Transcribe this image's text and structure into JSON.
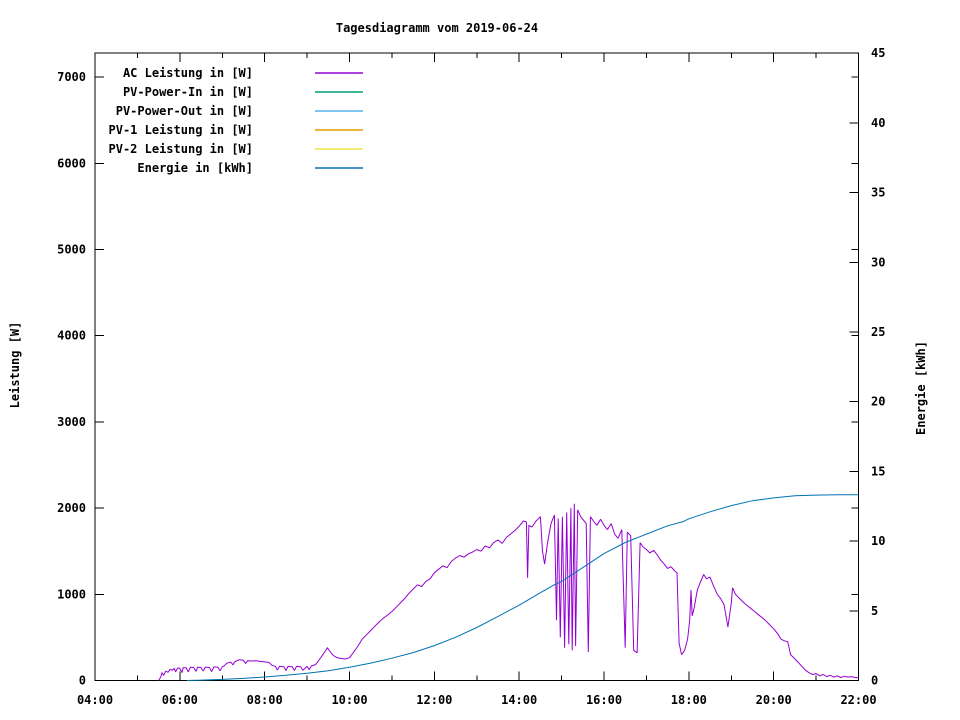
{
  "page": {
    "background": "#ffffff"
  },
  "chart_data": {
    "type": "line",
    "title": "Tagesdiagramm vom 2019-06-24",
    "xlabel": "",
    "ylabel": "Leistung [W]",
    "y2label": "Energie [kWh]",
    "grid": false,
    "legend_position": "top-left-inside",
    "x_range_hours": [
      4,
      22
    ],
    "x_major_ticks": [
      {
        "hour": 4,
        "label": "04:00"
      },
      {
        "hour": 6,
        "label": "06:00"
      },
      {
        "hour": 8,
        "label": "08:00"
      },
      {
        "hour": 10,
        "label": "10:00"
      },
      {
        "hour": 12,
        "label": "12:00"
      },
      {
        "hour": 14,
        "label": "14:00"
      },
      {
        "hour": 16,
        "label": "16:00"
      },
      {
        "hour": 18,
        "label": "18:00"
      },
      {
        "hour": 20,
        "label": "20:00"
      },
      {
        "hour": 22,
        "label": "22:00"
      }
    ],
    "x_minor_tick_hours": [
      5,
      7,
      9,
      11,
      13,
      15,
      17,
      19,
      21
    ],
    "y_axis": {
      "range": [
        0,
        7330
      ],
      "ticks": [
        {
          "value": 0,
          "label": "0"
        },
        {
          "value": 1000,
          "label": "1000"
        },
        {
          "value": 2000,
          "label": "2000"
        },
        {
          "value": 3000,
          "label": "3000"
        },
        {
          "value": 4000,
          "label": "4000"
        },
        {
          "value": 5000,
          "label": "5000"
        },
        {
          "value": 6000,
          "label": "6000"
        },
        {
          "value": 7000,
          "label": "7000"
        }
      ]
    },
    "y2_axis": {
      "range": [
        0,
        45
      ],
      "ticks": [
        {
          "value": 0,
          "label": "0"
        },
        {
          "value": 5,
          "label": "5"
        },
        {
          "value": 10,
          "label": "10"
        },
        {
          "value": 15,
          "label": "15"
        },
        {
          "value": 20,
          "label": "20"
        },
        {
          "value": 25,
          "label": "25"
        },
        {
          "value": 30,
          "label": "30"
        },
        {
          "value": 35,
          "label": "35"
        },
        {
          "value": 40,
          "label": "40"
        },
        {
          "value": 45,
          "label": "45"
        }
      ]
    },
    "series": [
      {
        "name": "AC Leistung in [W]",
        "color": "#9400d3",
        "axis": "y",
        "points": [
          [
            5.5,
            0
          ],
          [
            5.55,
            40
          ],
          [
            5.58,
            90
          ],
          [
            5.62,
            60
          ],
          [
            5.67,
            110
          ],
          [
            5.72,
            95
          ],
          [
            5.77,
            130
          ],
          [
            5.82,
            118
          ],
          [
            5.87,
            140
          ],
          [
            5.9,
            100
          ],
          [
            5.95,
            145
          ],
          [
            6.0,
            140
          ],
          [
            6.05,
            92
          ],
          [
            6.08,
            150
          ],
          [
            6.15,
            146
          ],
          [
            6.2,
            100
          ],
          [
            6.25,
            154
          ],
          [
            6.33,
            150
          ],
          [
            6.38,
            106
          ],
          [
            6.42,
            155
          ],
          [
            6.5,
            150
          ],
          [
            6.55,
            110
          ],
          [
            6.6,
            156
          ],
          [
            6.7,
            150
          ],
          [
            6.75,
            102
          ],
          [
            6.8,
            158
          ],
          [
            6.9,
            154
          ],
          [
            6.95,
            112
          ],
          [
            7.0,
            160
          ],
          [
            7.05,
            172
          ],
          [
            7.1,
            200
          ],
          [
            7.15,
            206
          ],
          [
            7.2,
            215
          ],
          [
            7.25,
            182
          ],
          [
            7.3,
            220
          ],
          [
            7.4,
            240
          ],
          [
            7.5,
            234
          ],
          [
            7.55,
            196
          ],
          [
            7.6,
            230
          ],
          [
            7.7,
            226
          ],
          [
            7.8,
            230
          ],
          [
            7.9,
            222
          ],
          [
            8.0,
            216
          ],
          [
            8.1,
            210
          ],
          [
            8.17,
            176
          ],
          [
            8.25,
            165
          ],
          [
            8.3,
            122
          ],
          [
            8.35,
            166
          ],
          [
            8.45,
            160
          ],
          [
            8.5,
            116
          ],
          [
            8.55,
            164
          ],
          [
            8.65,
            160
          ],
          [
            8.7,
            116
          ],
          [
            8.75,
            164
          ],
          [
            8.85,
            160
          ],
          [
            8.9,
            120
          ],
          [
            9.0,
            164
          ],
          [
            9.05,
            126
          ],
          [
            9.1,
            168
          ],
          [
            9.2,
            184
          ],
          [
            9.3,
            250
          ],
          [
            9.4,
            320
          ],
          [
            9.48,
            380
          ],
          [
            9.55,
            330
          ],
          [
            9.62,
            290
          ],
          [
            9.7,
            266
          ],
          [
            9.8,
            256
          ],
          [
            9.9,
            250
          ],
          [
            10.0,
            264
          ],
          [
            10.1,
            330
          ],
          [
            10.2,
            400
          ],
          [
            10.3,
            480
          ],
          [
            10.4,
            530
          ],
          [
            10.5,
            580
          ],
          [
            10.6,
            630
          ],
          [
            10.7,
            680
          ],
          [
            10.8,
            724
          ],
          [
            10.9,
            760
          ],
          [
            11.0,
            800
          ],
          [
            11.1,
            850
          ],
          [
            11.2,
            900
          ],
          [
            11.3,
            950
          ],
          [
            11.4,
            1010
          ],
          [
            11.5,
            1060
          ],
          [
            11.6,
            1110
          ],
          [
            11.7,
            1090
          ],
          [
            11.8,
            1150
          ],
          [
            11.9,
            1180
          ],
          [
            12.0,
            1250
          ],
          [
            12.1,
            1290
          ],
          [
            12.2,
            1330
          ],
          [
            12.3,
            1310
          ],
          [
            12.4,
            1380
          ],
          [
            12.5,
            1420
          ],
          [
            12.6,
            1450
          ],
          [
            12.7,
            1430
          ],
          [
            12.8,
            1470
          ],
          [
            12.9,
            1490
          ],
          [
            13.0,
            1520
          ],
          [
            13.1,
            1500
          ],
          [
            13.2,
            1560
          ],
          [
            13.3,
            1540
          ],
          [
            13.4,
            1600
          ],
          [
            13.5,
            1630
          ],
          [
            13.6,
            1590
          ],
          [
            13.7,
            1660
          ],
          [
            13.8,
            1700
          ],
          [
            13.9,
            1740
          ],
          [
            14.0,
            1790
          ],
          [
            14.1,
            1850
          ],
          [
            14.17,
            1840
          ],
          [
            14.2,
            1190
          ],
          [
            14.23,
            1800
          ],
          [
            14.3,
            1780
          ],
          [
            14.4,
            1850
          ],
          [
            14.5,
            1900
          ],
          [
            14.55,
            1500
          ],
          [
            14.6,
            1350
          ],
          [
            14.67,
            1600
          ],
          [
            14.75,
            1820
          ],
          [
            14.83,
            1920
          ],
          [
            14.88,
            700
          ],
          [
            14.92,
            1880
          ],
          [
            14.97,
            500
          ],
          [
            15.02,
            1900
          ],
          [
            15.07,
            380
          ],
          [
            15.12,
            1950
          ],
          [
            15.17,
            420
          ],
          [
            15.22,
            2000
          ],
          [
            15.25,
            350
          ],
          [
            15.3,
            2050
          ],
          [
            15.33,
            400
          ],
          [
            15.38,
            1980
          ],
          [
            15.45,
            1900
          ],
          [
            15.5,
            1870
          ],
          [
            15.58,
            1820
          ],
          [
            15.63,
            330
          ],
          [
            15.68,
            1900
          ],
          [
            15.75,
            1850
          ],
          [
            15.83,
            1800
          ],
          [
            15.92,
            1870
          ],
          [
            16.0,
            1800
          ],
          [
            16.08,
            1750
          ],
          [
            16.17,
            1820
          ],
          [
            16.25,
            1700
          ],
          [
            16.33,
            1650
          ],
          [
            16.42,
            1750
          ],
          [
            16.5,
            380
          ],
          [
            16.55,
            1720
          ],
          [
            16.63,
            1680
          ],
          [
            16.7,
            350
          ],
          [
            16.78,
            320
          ],
          [
            16.85,
            1600
          ],
          [
            16.92,
            1550
          ],
          [
            17.0,
            1520
          ],
          [
            17.08,
            1480
          ],
          [
            17.17,
            1510
          ],
          [
            17.25,
            1460
          ],
          [
            17.33,
            1400
          ],
          [
            17.42,
            1350
          ],
          [
            17.5,
            1300
          ],
          [
            17.58,
            1320
          ],
          [
            17.67,
            1270
          ],
          [
            17.72,
            1250
          ],
          [
            17.77,
            430
          ],
          [
            17.83,
            300
          ],
          [
            17.9,
            350
          ],
          [
            17.97,
            480
          ],
          [
            18.02,
            700
          ],
          [
            18.05,
            1050
          ],
          [
            18.08,
            750
          ],
          [
            18.13,
            850
          ],
          [
            18.2,
            1050
          ],
          [
            18.28,
            1150
          ],
          [
            18.35,
            1230
          ],
          [
            18.42,
            1180
          ],
          [
            18.5,
            1200
          ],
          [
            18.58,
            1100
          ],
          [
            18.67,
            1000
          ],
          [
            18.75,
            950
          ],
          [
            18.83,
            880
          ],
          [
            18.92,
            620
          ],
          [
            19.0,
            900
          ],
          [
            19.03,
            1075
          ],
          [
            19.1,
            1000
          ],
          [
            19.2,
            950
          ],
          [
            19.3,
            900
          ],
          [
            19.4,
            860
          ],
          [
            19.5,
            820
          ],
          [
            19.6,
            780
          ],
          [
            19.7,
            740
          ],
          [
            19.8,
            700
          ],
          [
            19.9,
            650
          ],
          [
            20.0,
            600
          ],
          [
            20.1,
            540
          ],
          [
            20.17,
            480
          ],
          [
            20.25,
            460
          ],
          [
            20.33,
            450
          ],
          [
            20.4,
            300
          ],
          [
            20.5,
            250
          ],
          [
            20.58,
            210
          ],
          [
            20.67,
            160
          ],
          [
            20.75,
            120
          ],
          [
            20.83,
            90
          ],
          [
            20.92,
            70
          ],
          [
            21.0,
            80
          ],
          [
            21.08,
            55
          ],
          [
            21.17,
            70
          ],
          [
            21.25,
            45
          ],
          [
            21.33,
            60
          ],
          [
            21.42,
            40
          ],
          [
            21.5,
            55
          ],
          [
            21.58,
            35
          ],
          [
            21.67,
            50
          ],
          [
            21.75,
            40
          ],
          [
            21.83,
            45
          ],
          [
            21.92,
            35
          ],
          [
            22.0,
            30
          ]
        ]
      },
      {
        "name": "PV-Power-In in [W]",
        "color": "#009e73",
        "axis": "y",
        "points": []
      },
      {
        "name": "PV-Power-Out in [W]",
        "color": "#56b4e9",
        "axis": "y",
        "points": []
      },
      {
        "name": "PV-1 Leistung in [W]",
        "color": "#e69f00",
        "axis": "y",
        "points": []
      },
      {
        "name": "PV-2 Leistung in [W]",
        "color": "#f0e442",
        "axis": "y",
        "points": []
      },
      {
        "name": "Energie in [kWh]",
        "color": "#0072b2",
        "axis": "y2",
        "points": [
          [
            6.17,
            0
          ],
          [
            6.5,
            0.03
          ],
          [
            7.0,
            0.08
          ],
          [
            7.5,
            0.15
          ],
          [
            8.0,
            0.25
          ],
          [
            8.5,
            0.38
          ],
          [
            9.0,
            0.52
          ],
          [
            9.5,
            0.7
          ],
          [
            10.0,
            0.95
          ],
          [
            10.5,
            1.25
          ],
          [
            11.0,
            1.6
          ],
          [
            11.5,
            2.0
          ],
          [
            12.0,
            2.5
          ],
          [
            12.5,
            3.1
          ],
          [
            13.0,
            3.8
          ],
          [
            13.5,
            4.6
          ],
          [
            14.0,
            5.4
          ],
          [
            14.5,
            6.3
          ],
          [
            14.85,
            6.9
          ],
          [
            15.0,
            7.1
          ],
          [
            15.5,
            8.1
          ],
          [
            16.0,
            9.1
          ],
          [
            16.5,
            9.9
          ],
          [
            17.0,
            10.5
          ],
          [
            17.5,
            11.1
          ],
          [
            17.87,
            11.4
          ],
          [
            18.0,
            11.6
          ],
          [
            18.5,
            12.1
          ],
          [
            19.0,
            12.55
          ],
          [
            19.5,
            12.9
          ],
          [
            20.0,
            13.1
          ],
          [
            20.5,
            13.25
          ],
          [
            21.0,
            13.3
          ],
          [
            21.5,
            13.32
          ],
          [
            22.0,
            13.32
          ]
        ]
      }
    ]
  }
}
